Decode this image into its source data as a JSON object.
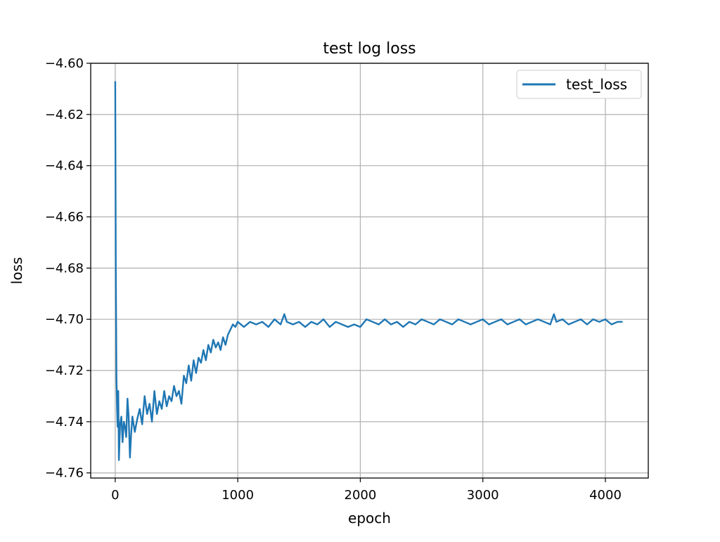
{
  "chart_data": {
    "type": "line",
    "title": "test log loss",
    "xlabel": "epoch",
    "ylabel": "loss",
    "xlim": [
      -200,
      4350
    ],
    "ylim": [
      -4.762,
      -4.6
    ],
    "grid": true,
    "legend_position": "top-right",
    "xticks": [
      0,
      1000,
      2000,
      3000,
      4000
    ],
    "xtick_labels": [
      "0",
      "1000",
      "2000",
      "3000",
      "4000"
    ],
    "yticks": [
      -4.6,
      -4.62,
      -4.64,
      -4.66,
      -4.68,
      -4.7,
      -4.72,
      -4.74,
      -4.76
    ],
    "ytick_labels": [
      "−4.60",
      "−4.62",
      "−4.64",
      "−4.66",
      "−4.68",
      "−4.70",
      "−4.72",
      "−4.74",
      "−4.76"
    ],
    "line_color": "#1f77b4",
    "series": [
      {
        "name": "test_loss",
        "x": [
          0,
          5,
          10,
          15,
          20,
          25,
          30,
          40,
          50,
          60,
          70,
          80,
          90,
          100,
          110,
          120,
          130,
          140,
          150,
          160,
          180,
          200,
          220,
          240,
          260,
          280,
          300,
          320,
          340,
          360,
          380,
          400,
          420,
          440,
          460,
          480,
          500,
          520,
          540,
          560,
          580,
          600,
          620,
          640,
          660,
          680,
          700,
          720,
          740,
          760,
          780,
          800,
          820,
          840,
          860,
          880,
          900,
          920,
          940,
          960,
          980,
          1000,
          1050,
          1100,
          1150,
          1200,
          1250,
          1300,
          1350,
          1380,
          1400,
          1450,
          1500,
          1550,
          1600,
          1650,
          1700,
          1750,
          1800,
          1850,
          1900,
          1950,
          2000,
          2050,
          2100,
          2150,
          2200,
          2250,
          2300,
          2350,
          2400,
          2450,
          2500,
          2550,
          2600,
          2650,
          2700,
          2750,
          2800,
          2850,
          2900,
          2950,
          3000,
          3050,
          3100,
          3150,
          3200,
          3250,
          3300,
          3350,
          3400,
          3450,
          3500,
          3550,
          3580,
          3600,
          3650,
          3700,
          3750,
          3800,
          3850,
          3900,
          3950,
          4000,
          4050,
          4100,
          4140
        ],
        "values": [
          -4.607,
          -4.68,
          -4.722,
          -4.735,
          -4.742,
          -4.728,
          -4.755,
          -4.741,
          -4.738,
          -4.748,
          -4.74,
          -4.742,
          -4.746,
          -4.731,
          -4.738,
          -4.754,
          -4.745,
          -4.738,
          -4.741,
          -4.744,
          -4.739,
          -4.735,
          -4.741,
          -4.73,
          -4.737,
          -4.733,
          -4.74,
          -4.728,
          -4.737,
          -4.732,
          -4.735,
          -4.728,
          -4.734,
          -4.73,
          -4.732,
          -4.726,
          -4.73,
          -4.728,
          -4.733,
          -4.722,
          -4.725,
          -4.718,
          -4.724,
          -4.716,
          -4.721,
          -4.715,
          -4.717,
          -4.712,
          -4.716,
          -4.71,
          -4.713,
          -4.708,
          -4.711,
          -4.709,
          -4.712,
          -4.707,
          -4.71,
          -4.706,
          -4.704,
          -4.702,
          -4.703,
          -4.701,
          -4.703,
          -4.701,
          -4.702,
          -4.701,
          -4.703,
          -4.7,
          -4.702,
          -4.698,
          -4.701,
          -4.702,
          -4.701,
          -4.703,
          -4.701,
          -4.702,
          -4.7,
          -4.703,
          -4.701,
          -4.702,
          -4.703,
          -4.702,
          -4.703,
          -4.7,
          -4.701,
          -4.702,
          -4.7,
          -4.702,
          -4.701,
          -4.703,
          -4.701,
          -4.702,
          -4.7,
          -4.701,
          -4.702,
          -4.7,
          -4.701,
          -4.702,
          -4.7,
          -4.701,
          -4.702,
          -4.701,
          -4.7,
          -4.702,
          -4.701,
          -4.7,
          -4.702,
          -4.701,
          -4.7,
          -4.702,
          -4.701,
          -4.7,
          -4.701,
          -4.702,
          -4.698,
          -4.701,
          -4.7,
          -4.702,
          -4.701,
          -4.7,
          -4.702,
          -4.7,
          -4.701,
          -4.7,
          -4.702,
          -4.701,
          -4.701
        ]
      }
    ]
  }
}
